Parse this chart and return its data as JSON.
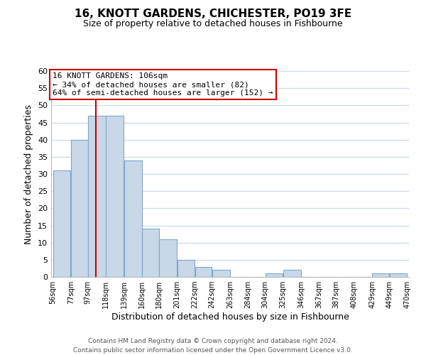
{
  "title": "16, KNOTT GARDENS, CHICHESTER, PO19 3FE",
  "subtitle": "Size of property relative to detached houses in Fishbourne",
  "xlabel": "Distribution of detached houses by size in Fishbourne",
  "ylabel": "Number of detached properties",
  "bin_edges": [
    56,
    77,
    97,
    118,
    139,
    160,
    180,
    201,
    222,
    242,
    263,
    284,
    304,
    325,
    346,
    367,
    387,
    408,
    429,
    449,
    470
  ],
  "bin_labels": [
    "56sqm",
    "77sqm",
    "97sqm",
    "118sqm",
    "139sqm",
    "160sqm",
    "180sqm",
    "201sqm",
    "222sqm",
    "242sqm",
    "263sqm",
    "284sqm",
    "304sqm",
    "325sqm",
    "346sqm",
    "367sqm",
    "387sqm",
    "408sqm",
    "429sqm",
    "449sqm",
    "470sqm"
  ],
  "counts": [
    31,
    40,
    47,
    47,
    34,
    14,
    11,
    5,
    3,
    2,
    0,
    0,
    1,
    2,
    0,
    0,
    0,
    0,
    1,
    1
  ],
  "bar_color": "#c8d8e8",
  "bar_edge_color": "#7ca8c8",
  "property_size": 106,
  "red_line_color": "#cc0000",
  "annotation_box_edge_color": "#cc0000",
  "annotation_lines": [
    "16 KNOTT GARDENS: 106sqm",
    "← 34% of detached houses are smaller (82)",
    "64% of semi-detached houses are larger (152) →"
  ],
  "ylim": [
    0,
    60
  ],
  "yticks": [
    0,
    5,
    10,
    15,
    20,
    25,
    30,
    35,
    40,
    45,
    50,
    55,
    60
  ],
  "footer_lines": [
    "Contains HM Land Registry data © Crown copyright and database right 2024.",
    "Contains public sector information licensed under the Open Government Licence v3.0."
  ],
  "background_color": "#ffffff",
  "grid_color": "#c8d8e8"
}
